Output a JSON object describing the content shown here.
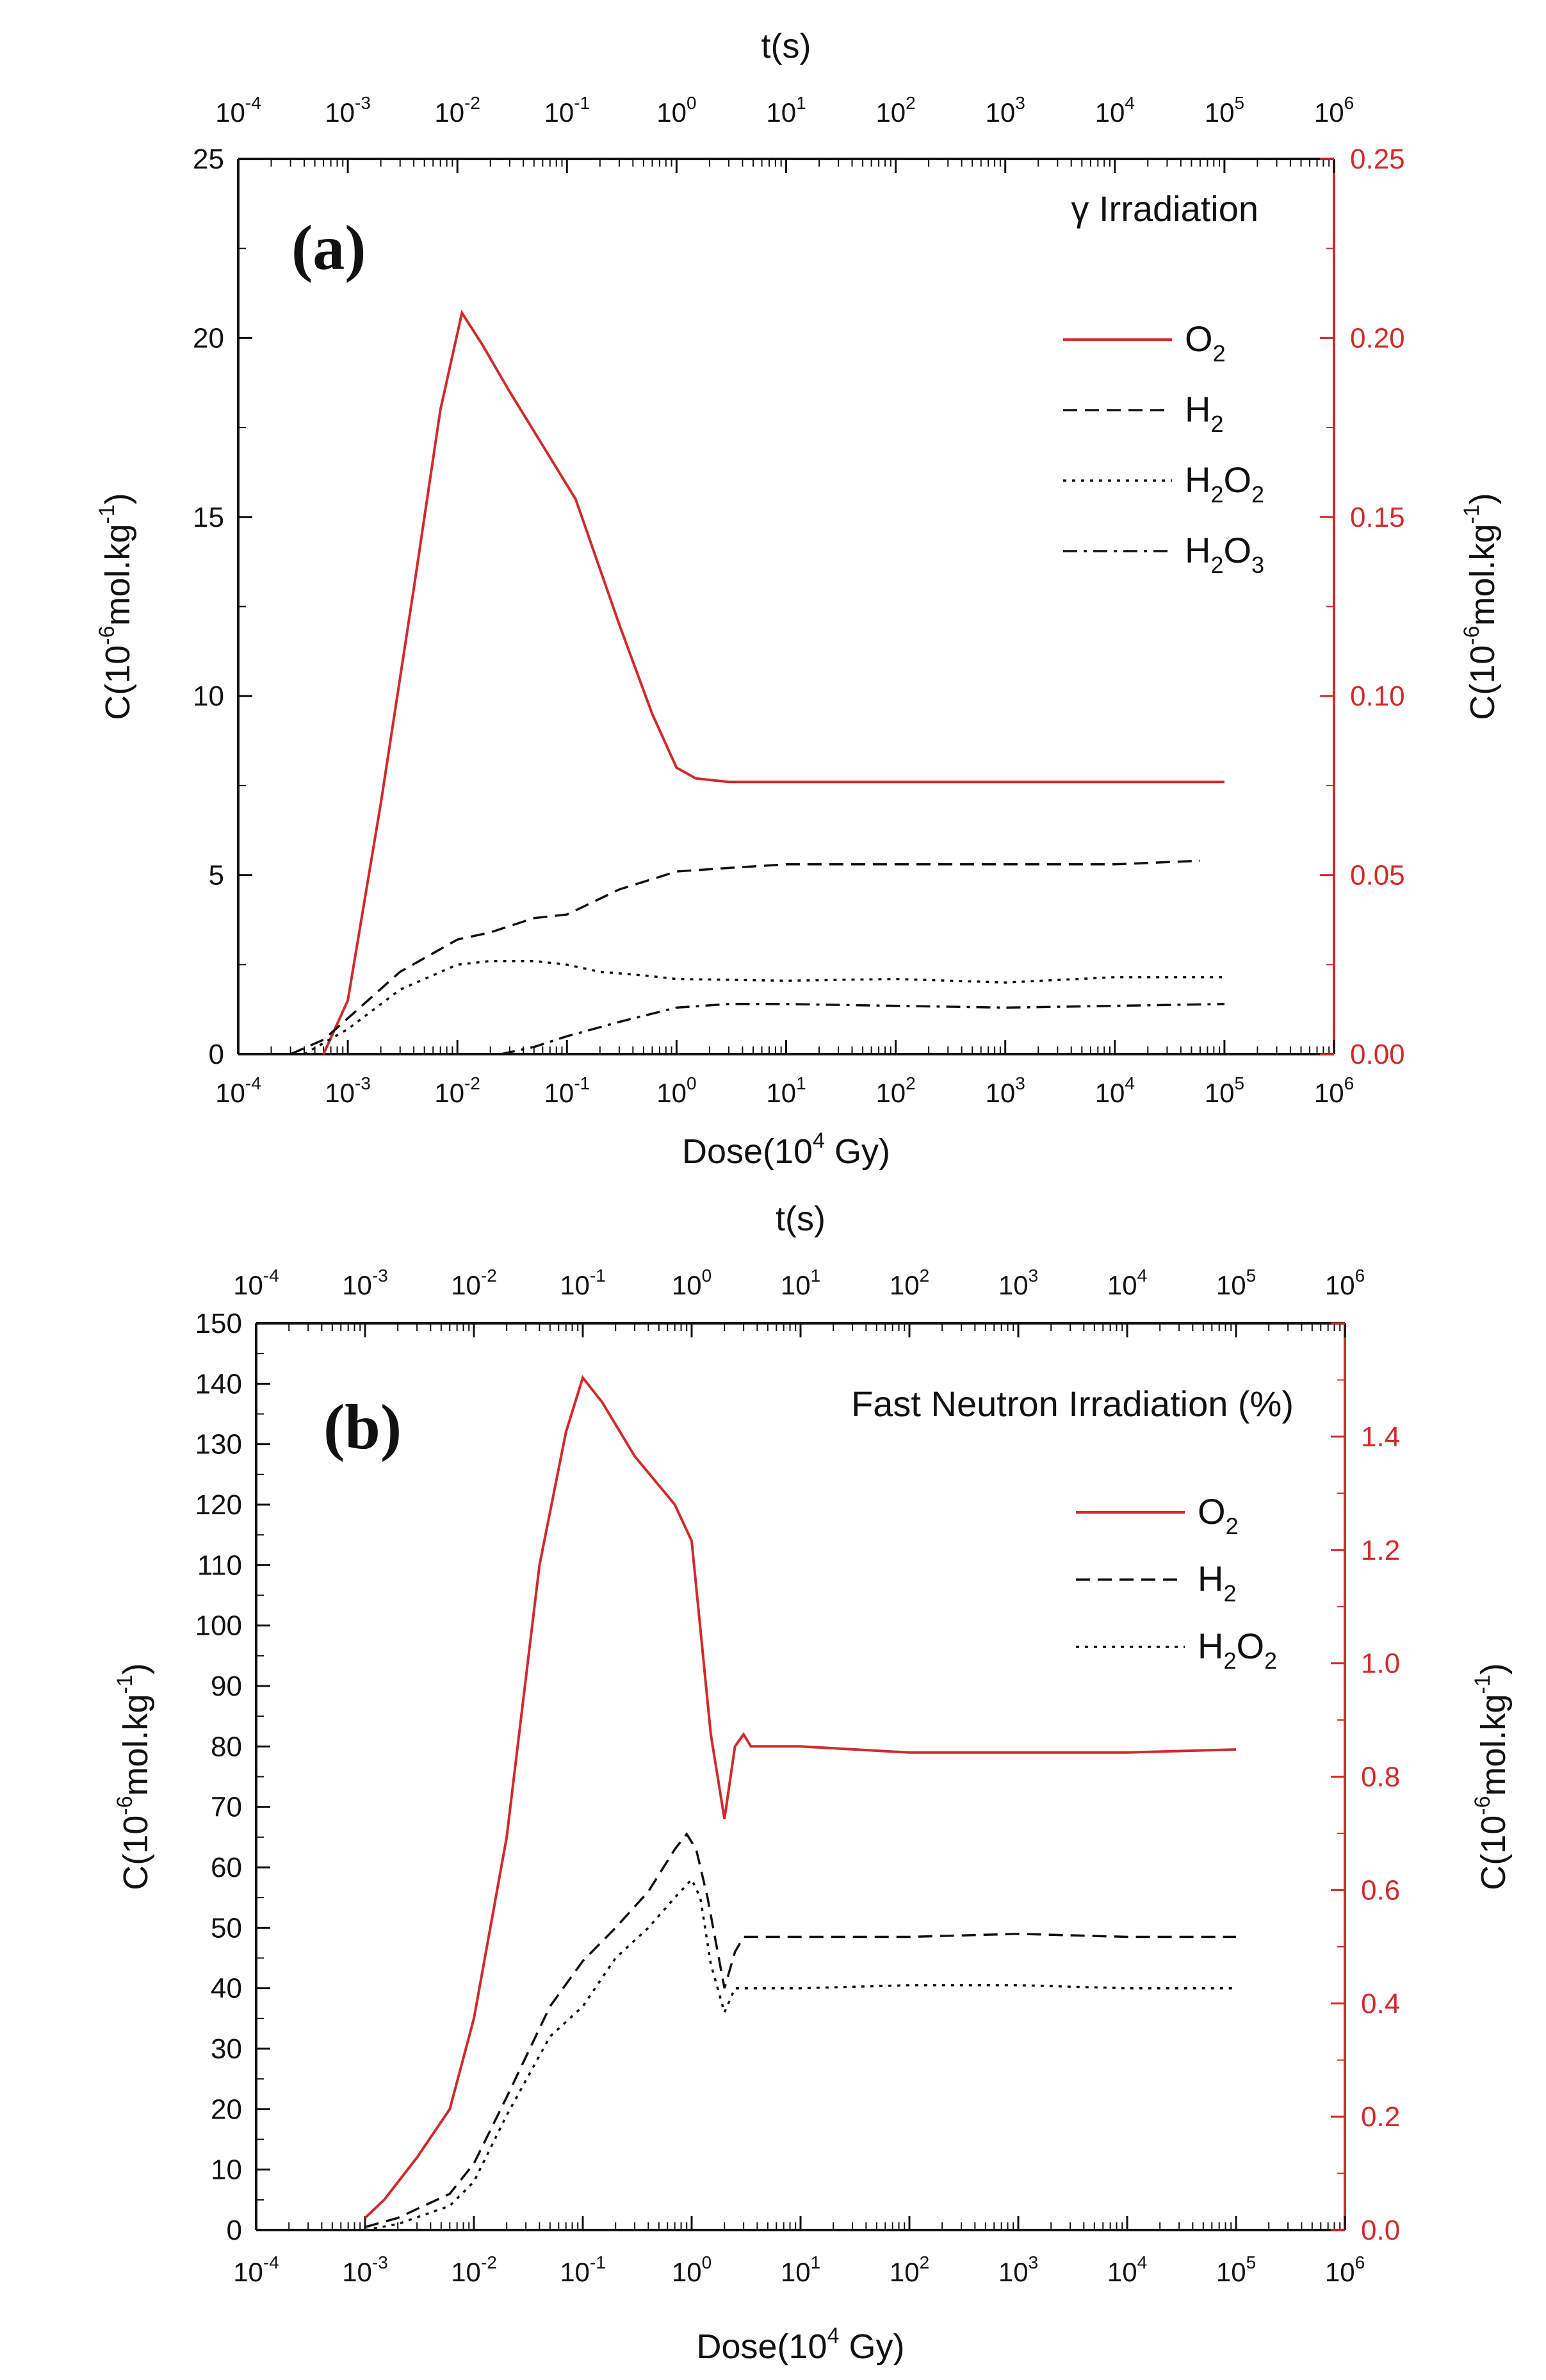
{
  "colors": {
    "axis": "#111111",
    "o2": "#d12a2a",
    "right_axis": "#d12a2a",
    "background": "#ffffff"
  },
  "chart_data": [
    {
      "type": "line",
      "panel_label": "(a)",
      "title": "γ Irradiation",
      "xlabel_base": "Dose(10",
      "xlabel_exp": "4",
      "xlabel_tail": " Gy)",
      "x2label": "t(s)",
      "ylabel_base": "C(10",
      "ylabel_exp": "-6",
      "ylabel_tail": "mol.kg",
      "ylabel_tail_exp": "-1",
      "ylabel_close": ")",
      "xscale": "log",
      "xlim": [
        0.0001,
        1000000
      ],
      "x_tick_exponents": [
        "-4",
        "-3",
        "-2",
        "-1",
        "0",
        "1",
        "2",
        "3",
        "4",
        "5",
        "6"
      ],
      "ylim": [
        0,
        25
      ],
      "yticks": [
        "0",
        "5",
        "10",
        "15",
        "20",
        "25"
      ],
      "y2lim": [
        0,
        0.25
      ],
      "y2ticks": [
        "0.00",
        "0.05",
        "0.10",
        "0.15",
        "0.20",
        "0.25"
      ],
      "legend_position": "upper-right",
      "series": [
        {
          "name": "O",
          "sub": "2",
          "sub_name": "",
          "style": "solid",
          "color": "#d12a2a",
          "axis": "y2",
          "x": [
            0.0006,
            0.001,
            0.002,
            0.004,
            0.007,
            0.011,
            0.017,
            0.03,
            0.06,
            0.12,
            0.3,
            0.6,
            1.0,
            1.5,
            3,
            10,
            100,
            1000,
            10000,
            100000
          ],
          "y": [
            0.0,
            0.015,
            0.07,
            0.13,
            0.18,
            0.207,
            0.198,
            0.185,
            0.17,
            0.155,
            0.12,
            0.095,
            0.08,
            0.077,
            0.076,
            0.076,
            0.076,
            0.076,
            0.076,
            0.076
          ]
        },
        {
          "name": "H",
          "sub": "2",
          "sub_name": "",
          "style": "dashed",
          "color": "#111111",
          "axis": "y",
          "x": [
            0.0003,
            0.0006,
            0.001,
            0.003,
            0.01,
            0.02,
            0.05,
            0.1,
            0.3,
            1.0,
            3,
            10,
            100,
            1000,
            10000,
            60000
          ],
          "y": [
            0.0,
            0.4,
            1.0,
            2.3,
            3.2,
            3.4,
            3.8,
            3.9,
            4.6,
            5.1,
            5.2,
            5.3,
            5.3,
            5.3,
            5.3,
            5.4
          ]
        },
        {
          "name": "H",
          "sub": "2",
          "sub_name": "O",
          "sub2": "2",
          "style": "dotted",
          "color": "#111111",
          "axis": "y",
          "x": [
            0.0004,
            0.001,
            0.003,
            0.01,
            0.02,
            0.05,
            0.1,
            0.2,
            0.5,
            1.0,
            10,
            100,
            1000,
            10000,
            100000
          ],
          "y": [
            0.0,
            0.7,
            1.8,
            2.5,
            2.6,
            2.6,
            2.5,
            2.3,
            2.2,
            2.1,
            2.05,
            2.1,
            2.0,
            2.15,
            2.15
          ]
        },
        {
          "name": "H",
          "sub": "2",
          "sub_name": "O",
          "sub2": "3",
          "style": "dashdot",
          "color": "#111111",
          "axis": "y",
          "x": [
            0.025,
            0.05,
            0.1,
            0.3,
            1.0,
            3,
            10,
            100,
            1000,
            10000,
            100000
          ],
          "y": [
            0.0,
            0.2,
            0.5,
            0.9,
            1.3,
            1.4,
            1.4,
            1.35,
            1.3,
            1.35,
            1.4
          ]
        }
      ]
    },
    {
      "type": "line",
      "panel_label": "(b)",
      "title": "Fast Neutron Irradiation (%)",
      "xlabel_base": "Dose(10",
      "xlabel_exp": "4",
      "xlabel_tail": " Gy)",
      "x2label": "t(s)",
      "ylabel_base": "C(10",
      "ylabel_exp": "-6",
      "ylabel_tail": "mol.kg",
      "ylabel_tail_exp": "-1",
      "ylabel_close": ")",
      "xscale": "log",
      "xlim": [
        0.0001,
        1000000
      ],
      "x_tick_exponents": [
        "-4",
        "-3",
        "-2",
        "-1",
        "0",
        "1",
        "2",
        "3",
        "4",
        "5",
        "6"
      ],
      "ylim": [
        0,
        150
      ],
      "yticks": [
        "0",
        "10",
        "20",
        "30",
        "40",
        "50",
        "60",
        "70",
        "80",
        "90",
        "100",
        "110",
        "120",
        "130",
        "140",
        "150"
      ],
      "y2lim": [
        0,
        1.5
      ],
      "y2ticks": [
        "0.0",
        "0.2",
        "0.4",
        "0.6",
        "0.8",
        "1.0",
        "1.2",
        "1.4"
      ],
      "legend_position": "upper-right",
      "series": [
        {
          "name": "O",
          "sub": "2",
          "sub_name": "",
          "style": "solid",
          "color": "#d12a2a",
          "axis": "y2",
          "x": [
            0.001,
            0.0015,
            0.003,
            0.006,
            0.01,
            0.02,
            0.04,
            0.07,
            0.1,
            0.15,
            0.3,
            0.7,
            1.0,
            1.5,
            2.0,
            2.5,
            3.0,
            3.5,
            10,
            100,
            1000,
            10000,
            100000
          ],
          "y": [
            0.02,
            0.05,
            0.12,
            0.2,
            0.35,
            0.65,
            1.1,
            1.32,
            1.41,
            1.37,
            1.28,
            1.2,
            1.14,
            0.82,
            0.68,
            0.8,
            0.82,
            0.8,
            0.8,
            0.79,
            0.79,
            0.79,
            0.795
          ]
        },
        {
          "name": "H",
          "sub": "2",
          "sub_name": "",
          "style": "dashed",
          "color": "#111111",
          "axis": "y",
          "x": [
            0.001,
            0.002,
            0.006,
            0.01,
            0.02,
            0.05,
            0.1,
            0.2,
            0.4,
            0.7,
            0.9,
            1.1,
            1.4,
            2.0,
            2.5,
            3.0,
            10,
            100,
            1000,
            10000,
            100000
          ],
          "y": [
            0.5,
            2.0,
            6.0,
            11.0,
            22.0,
            37.0,
            44.5,
            50.0,
            56.0,
            63.0,
            65.5,
            63.0,
            55.0,
            40.0,
            46.0,
            48.5,
            48.5,
            48.5,
            49.0,
            48.5,
            48.5
          ]
        },
        {
          "name": "H",
          "sub": "2",
          "sub_name": "O",
          "sub2": "2",
          "style": "dotted",
          "color": "#111111",
          "axis": "y",
          "x": [
            0.001,
            0.002,
            0.006,
            0.01,
            0.02,
            0.05,
            0.1,
            0.2,
            0.4,
            0.7,
            1.0,
            1.2,
            1.5,
            2.0,
            2.5,
            3.0,
            10,
            100,
            1000,
            10000,
            100000
          ],
          "y": [
            0.0,
            1.0,
            4.0,
            8.0,
            19.0,
            32.0,
            37.0,
            45.0,
            50.0,
            55.0,
            58.0,
            55.0,
            44.0,
            36.0,
            40.0,
            40.0,
            40.0,
            40.5,
            40.5,
            40.0,
            40.0
          ]
        }
      ]
    }
  ]
}
